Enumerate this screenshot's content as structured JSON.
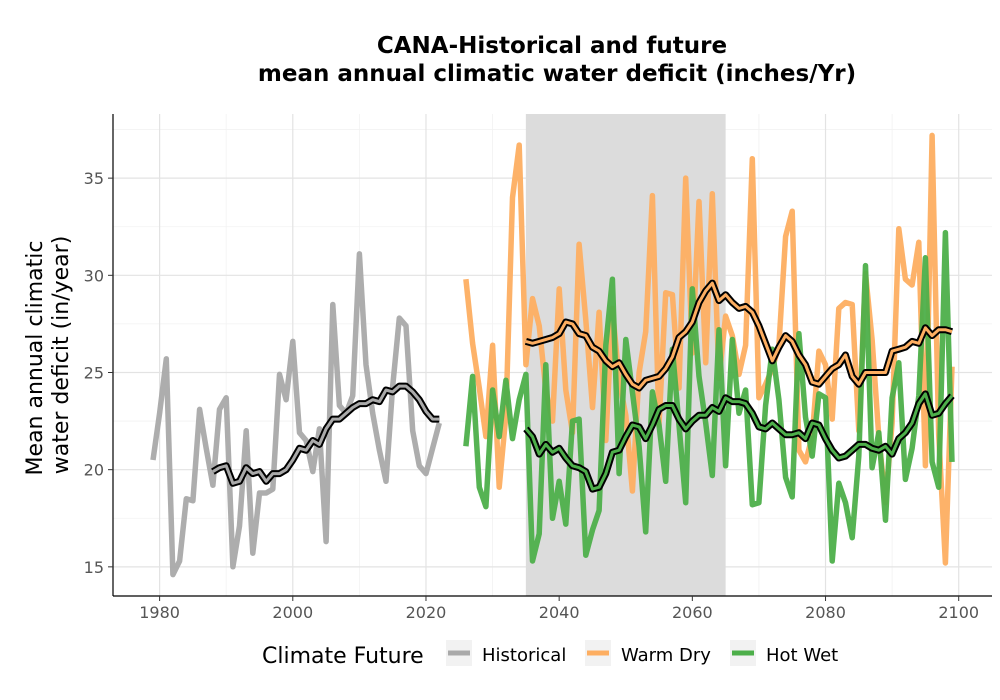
{
  "chart_data": {
    "type": "line",
    "title": "CANA-Historical and future\nmean annual climatic water deficit (inches/Yr)",
    "title_lines": [
      "CANA-Historical and future",
      "mean annual climatic water deficit (inches/Yr)"
    ],
    "xlabel": "",
    "ylabel": "Mean annual climatic\nwater deficit (in/year)",
    "ylabel_lines": [
      "Mean annual climatic",
      "water deficit (in/year)"
    ],
    "xlim": [
      1973,
      2105
    ],
    "ylim": [
      13.5,
      38.3
    ],
    "x_ticks": [
      1980,
      2000,
      2020,
      2040,
      2060,
      2080,
      2100
    ],
    "y_ticks": [
      15,
      20,
      25,
      30,
      35
    ],
    "grid": true,
    "shaded_period": {
      "x_start": 2035,
      "x_end": 2065,
      "color": "#dcdcdc"
    },
    "legend": {
      "title": "Climate Future",
      "position": "bottom",
      "entries": [
        {
          "label": "Historical",
          "color": "#a9a9a9"
        },
        {
          "label": "Warm Dry",
          "color": "#fdae61"
        },
        {
          "label": "Hot Wet",
          "color": "#4daf4a"
        }
      ]
    },
    "series": [
      {
        "name": "Historical",
        "color": "#a9a9a9",
        "x": [
          1979,
          1980,
          1981,
          1982,
          1983,
          1984,
          1985,
          1986,
          1987,
          1988,
          1989,
          1990,
          1991,
          1992,
          1993,
          1994,
          1995,
          1996,
          1997,
          1998,
          1999,
          2000,
          2001,
          2002,
          2003,
          2004,
          2005,
          2006,
          2007,
          2008,
          2009,
          2010,
          2011,
          2012,
          2013,
          2014,
          2015,
          2016,
          2017,
          2018,
          2019,
          2020,
          2021,
          2022
        ],
        "values": [
          20.5,
          22.9,
          25.7,
          14.6,
          15.3,
          18.5,
          18.4,
          23.1,
          21.1,
          19.2,
          23.1,
          23.7,
          15.0,
          17.1,
          22.0,
          15.7,
          18.8,
          18.8,
          19.0,
          24.9,
          23.6,
          26.6,
          21.9,
          21.5,
          19.9,
          22.1,
          16.3,
          28.5,
          23.3,
          22.9,
          23.8,
          31.1,
          25.4,
          22.9,
          21.0,
          19.4,
          24.3,
          27.8,
          27.4,
          22.0,
          20.2,
          19.8,
          21.1,
          22.4
        ]
      },
      {
        "name": "Warm Dry",
        "color": "#fdae61",
        "x": [
          2026,
          2027,
          2028,
          2029,
          2030,
          2031,
          2032,
          2033,
          2034,
          2035,
          2036,
          2037,
          2038,
          2039,
          2040,
          2041,
          2042,
          2043,
          2044,
          2045,
          2046,
          2047,
          2048,
          2049,
          2050,
          2051,
          2052,
          2053,
          2054,
          2055,
          2056,
          2057,
          2058,
          2059,
          2060,
          2061,
          2062,
          2063,
          2064,
          2065,
          2066,
          2067,
          2068,
          2069,
          2070,
          2071,
          2072,
          2073,
          2074,
          2075,
          2076,
          2077,
          2078,
          2079,
          2080,
          2081,
          2082,
          2083,
          2084,
          2085,
          2086,
          2087,
          2088,
          2089,
          2090,
          2091,
          2092,
          2093,
          2094,
          2095,
          2096,
          2097,
          2098,
          2099
        ],
        "values": [
          29.8,
          26.5,
          24.2,
          21.7,
          26.4,
          19.1,
          22.8,
          34.0,
          36.7,
          25.4,
          28.8,
          27.4,
          24.1,
          22.5,
          29.3,
          24.1,
          21.9,
          31.6,
          27.7,
          23.2,
          28.1,
          21.5,
          28.3,
          24.6,
          22.8,
          18.9,
          25.0,
          27.1,
          34.1,
          22.3,
          29.1,
          29.0,
          24.2,
          35.0,
          26.0,
          33.8,
          25.5,
          34.2,
          24.7,
          27.9,
          26.9,
          24.9,
          26.4,
          36.0,
          23.7,
          24.4,
          25.2,
          26.4,
          32.0,
          33.3,
          21.0,
          20.4,
          21.7,
          26.1,
          25.4,
          22.6,
          28.3,
          28.6,
          28.5,
          22.0,
          30.1,
          26.7,
          21.7,
          18.3,
          22.4,
          32.4,
          29.8,
          29.5,
          31.7,
          20.2,
          37.2,
          21.8,
          15.2,
          25.3
        ]
      },
      {
        "name": "Hot Wet",
        "color": "#4daf4a",
        "x": [
          2026,
          2027,
          2028,
          2029,
          2030,
          2031,
          2032,
          2033,
          2034,
          2035,
          2036,
          2037,
          2038,
          2039,
          2040,
          2041,
          2042,
          2043,
          2044,
          2045,
          2046,
          2047,
          2048,
          2049,
          2050,
          2051,
          2052,
          2053,
          2054,
          2055,
          2056,
          2057,
          2058,
          2059,
          2060,
          2061,
          2062,
          2063,
          2064,
          2065,
          2066,
          2067,
          2068,
          2069,
          2070,
          2071,
          2072,
          2073,
          2074,
          2075,
          2076,
          2077,
          2078,
          2079,
          2080,
          2081,
          2082,
          2083,
          2084,
          2085,
          2086,
          2087,
          2088,
          2089,
          2090,
          2091,
          2092,
          2093,
          2094,
          2095,
          2096,
          2097,
          2098,
          2099
        ],
        "values": [
          21.2,
          24.8,
          19.1,
          18.1,
          24.1,
          21.7,
          24.6,
          21.6,
          23.6,
          24.9,
          15.3,
          16.7,
          25.4,
          17.5,
          19.4,
          17.2,
          22.5,
          22.6,
          15.6,
          16.9,
          17.9,
          26.4,
          29.8,
          19.8,
          26.7,
          24.0,
          21.2,
          16.8,
          24.0,
          22.3,
          19.4,
          26.2,
          22.3,
          18.3,
          29.3,
          24.8,
          22.4,
          19.7,
          27.2,
          20.2,
          26.7,
          22.9,
          24.1,
          18.2,
          18.3,
          23.3,
          26.2,
          23.6,
          19.6,
          18.6,
          27.0,
          22.7,
          20.7,
          23.9,
          23.7,
          15.3,
          19.3,
          18.3,
          16.5,
          20.7,
          30.5,
          20.1,
          21.9,
          17.4,
          23.7,
          25.5,
          19.5,
          21.1,
          23.8,
          30.9,
          20.4,
          19.1,
          32.2,
          20.4
        ]
      }
    ],
    "smoothed_series": [
      {
        "name": "Historical",
        "outline": "#000000",
        "fill": "#a9a9a9",
        "x": [
          1988,
          1989,
          1990,
          1991,
          1992,
          1993,
          1994,
          1995,
          1996,
          1997,
          1998,
          1999,
          2000,
          2001,
          2002,
          2003,
          2004,
          2005,
          2006,
          2007,
          2008,
          2009,
          2010,
          2011,
          2012,
          2013,
          2014,
          2015,
          2016,
          2017,
          2018,
          2019,
          2020,
          2021,
          2022
        ],
        "values": [
          19.9,
          20.1,
          20.2,
          19.3,
          19.4,
          20.1,
          19.8,
          19.9,
          19.4,
          19.8,
          19.8,
          20.0,
          20.5,
          21.1,
          21.0,
          21.5,
          21.3,
          22.1,
          22.6,
          22.6,
          22.9,
          23.2,
          23.4,
          23.4,
          23.6,
          23.5,
          24.1,
          24.0,
          24.3,
          24.3,
          24.0,
          23.6,
          23.0,
          22.6,
          22.6
        ]
      },
      {
        "name": "Warm Dry",
        "outline": "#000000",
        "fill": "#fdae61",
        "x": [
          2035,
          2036,
          2037,
          2038,
          2039,
          2040,
          2041,
          2042,
          2043,
          2044,
          2045,
          2046,
          2047,
          2048,
          2049,
          2050,
          2051,
          2052,
          2053,
          2054,
          2055,
          2056,
          2057,
          2058,
          2059,
          2060,
          2061,
          2062,
          2063,
          2064,
          2065,
          2066,
          2067,
          2068,
          2069,
          2070,
          2071,
          2072,
          2073,
          2074,
          2075,
          2076,
          2077,
          2078,
          2079,
          2080,
          2081,
          2082,
          2083,
          2084,
          2085,
          2086,
          2087,
          2088,
          2089,
          2090,
          2091,
          2092,
          2093,
          2094,
          2095,
          2096,
          2097,
          2098,
          2099
        ],
        "values": [
          26.6,
          26.5,
          26.6,
          26.7,
          26.8,
          27.0,
          27.6,
          27.5,
          27.0,
          26.9,
          26.3,
          26.1,
          25.6,
          25.3,
          25.5,
          24.9,
          24.4,
          24.2,
          24.6,
          24.7,
          24.8,
          25.2,
          25.8,
          26.8,
          27.1,
          27.6,
          28.6,
          29.2,
          29.6,
          28.7,
          29.0,
          28.6,
          28.3,
          28.4,
          28.1,
          27.4,
          26.5,
          25.6,
          26.3,
          26.9,
          26.6,
          25.9,
          25.4,
          24.5,
          24.4,
          24.8,
          25.2,
          25.4,
          25.9,
          24.8,
          24.4,
          25.0,
          25.0,
          25.0,
          25.0,
          26.1,
          26.2,
          26.3,
          26.6,
          26.5,
          27.3,
          26.9,
          27.2,
          27.2,
          27.1
        ]
      },
      {
        "name": "Hot Wet",
        "outline": "#000000",
        "fill": "#4daf4a",
        "x": [
          2035,
          2036,
          2037,
          2038,
          2039,
          2040,
          2041,
          2042,
          2043,
          2044,
          2045,
          2046,
          2047,
          2048,
          2049,
          2050,
          2051,
          2052,
          2053,
          2054,
          2055,
          2056,
          2057,
          2058,
          2059,
          2060,
          2061,
          2062,
          2063,
          2064,
          2065,
          2066,
          2067,
          2068,
          2069,
          2070,
          2071,
          2072,
          2073,
          2074,
          2075,
          2076,
          2077,
          2078,
          2079,
          2080,
          2081,
          2082,
          2083,
          2084,
          2085,
          2086,
          2087,
          2088,
          2089,
          2090,
          2091,
          2092,
          2093,
          2094,
          2095,
          2096,
          2097,
          2098,
          2099
        ],
        "values": [
          22.1,
          21.7,
          20.8,
          21.3,
          20.9,
          21.1,
          20.6,
          20.2,
          20.1,
          19.9,
          19.0,
          19.1,
          19.8,
          20.9,
          21.0,
          21.7,
          22.3,
          22.2,
          21.6,
          22.3,
          23.1,
          23.3,
          23.3,
          22.6,
          22.1,
          22.5,
          22.8,
          22.8,
          23.2,
          23.0,
          23.7,
          23.5,
          23.5,
          23.4,
          22.9,
          22.2,
          22.1,
          22.4,
          22.1,
          21.8,
          21.8,
          21.9,
          21.6,
          22.4,
          22.3,
          21.6,
          21.0,
          20.6,
          20.7,
          21.0,
          21.3,
          21.3,
          21.1,
          21.0,
          21.2,
          20.8,
          21.6,
          21.9,
          22.4,
          23.4,
          23.9,
          22.8,
          22.9,
          23.4,
          23.8
        ]
      }
    ]
  }
}
